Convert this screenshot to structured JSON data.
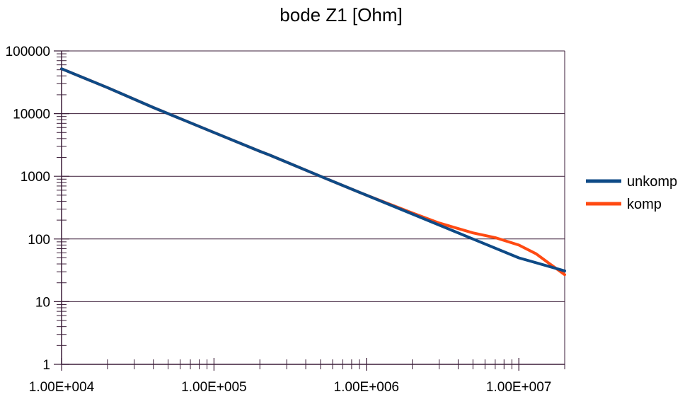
{
  "chart_data": {
    "type": "line",
    "title": "bode Z1 [Ohm]",
    "xlabel": "",
    "ylabel": "",
    "xscale": "log",
    "yscale": "log",
    "xlim": [
      10000,
      20000000
    ],
    "ylim": [
      1,
      100000
    ],
    "grid": "horizontal major lines",
    "legend_position": "right",
    "x_tick_labels": [
      "1.00E+004",
      "1.00E+005",
      "1.00E+006",
      "1.00E+007"
    ],
    "x_tick_values": [
      10000,
      100000,
      1000000,
      10000000
    ],
    "y_tick_labels": [
      "1",
      "10",
      "100",
      "1000",
      "10000",
      "100000"
    ],
    "y_tick_values": [
      1,
      10,
      100,
      1000,
      10000,
      100000
    ],
    "series": [
      {
        "name": "unkomp",
        "color": "#0e4a86",
        "x": [
          10000,
          20000,
          40000,
          100000,
          200000,
          230000,
          500000,
          1000000,
          2000000,
          5000000,
          10000000,
          20000000
        ],
        "y": [
          52000,
          26000,
          12500,
          5000,
          2500,
          2200,
          1000,
          500,
          250,
          100,
          50,
          31
        ]
      },
      {
        "name": "komp",
        "color": "#ff4a12",
        "x": [
          10000,
          20000,
          40000,
          100000,
          200000,
          230000,
          500000,
          1000000,
          2000000,
          3000000,
          5000000,
          7000000,
          10000000,
          13000000,
          16000000,
          20000000
        ],
        "y": [
          52000,
          26000,
          12500,
          5000,
          2500,
          2200,
          1000,
          500,
          260,
          180,
          125,
          105,
          80,
          58,
          40,
          27
        ]
      }
    ]
  }
}
